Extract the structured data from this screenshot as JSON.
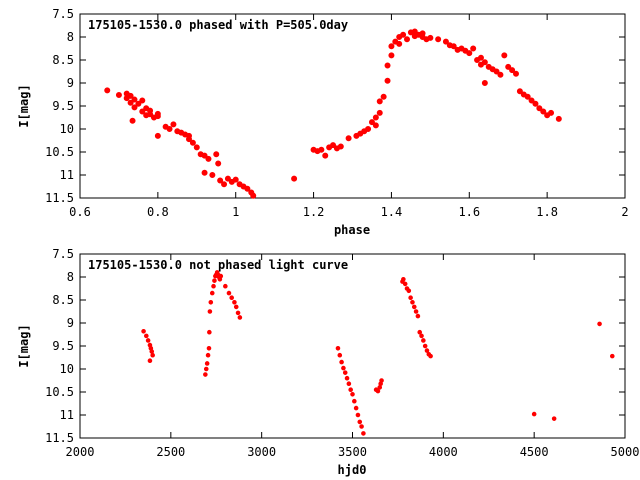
{
  "chart_data": [
    {
      "type": "scatter",
      "title": "175105-1530.0 phased with P=505.0day",
      "xlabel": "phase",
      "ylabel": "I[mag]",
      "xlim": [
        0.6,
        2.0
      ],
      "ylim": [
        11.5,
        7.5
      ],
      "y_inverted": true,
      "xticks": [
        0.6,
        0.8,
        1,
        1.2,
        1.4,
        1.6,
        1.8,
        2
      ],
      "xtick_labels": [
        "0.6",
        "0.8",
        "1",
        "1.2",
        "1.4",
        "1.6",
        "1.8",
        "2"
      ],
      "yticks": [
        7.5,
        8,
        8.5,
        9,
        9.5,
        10,
        10.5,
        11,
        11.5
      ],
      "ytick_labels": [
        "7.5",
        "8",
        "8.5",
        "9",
        "9.5",
        "10",
        "10.5",
        "11",
        "11.5"
      ],
      "grid": false,
      "marker_color": "#ff0000",
      "points": [
        [
          0.67,
          9.16
        ],
        [
          0.7,
          9.26
        ],
        [
          0.72,
          9.23
        ],
        [
          0.72,
          9.33
        ],
        [
          0.73,
          9.28
        ],
        [
          0.73,
          9.43
        ],
        [
          0.74,
          9.36
        ],
        [
          0.74,
          9.53
        ],
        [
          0.735,
          9.82
        ],
        [
          0.75,
          9.45
        ],
        [
          0.76,
          9.38
        ],
        [
          0.76,
          9.62
        ],
        [
          0.77,
          9.55
        ],
        [
          0.77,
          9.7
        ],
        [
          0.78,
          9.6
        ],
        [
          0.78,
          9.68
        ],
        [
          0.79,
          9.75
        ],
        [
          0.8,
          9.72
        ],
        [
          0.8,
          9.67
        ],
        [
          0.8,
          10.15
        ],
        [
          0.82,
          9.95
        ],
        [
          0.83,
          10.0
        ],
        [
          0.84,
          9.9
        ],
        [
          0.85,
          10.05
        ],
        [
          0.86,
          10.08
        ],
        [
          0.87,
          10.12
        ],
        [
          0.88,
          10.15
        ],
        [
          0.88,
          10.22
        ],
        [
          0.89,
          10.3
        ],
        [
          0.9,
          10.4
        ],
        [
          0.91,
          10.55
        ],
        [
          0.92,
          10.58
        ],
        [
          0.93,
          10.65
        ],
        [
          0.92,
          10.95
        ],
        [
          0.94,
          11.0
        ],
        [
          0.95,
          10.55
        ],
        [
          0.955,
          10.75
        ],
        [
          0.96,
          11.12
        ],
        [
          0.97,
          11.2
        ],
        [
          0.98,
          11.08
        ],
        [
          0.99,
          11.15
        ],
        [
          1.0,
          11.1
        ],
        [
          1.01,
          11.2
        ],
        [
          1.02,
          11.25
        ],
        [
          1.03,
          11.3
        ],
        [
          1.04,
          11.38
        ],
        [
          1.045,
          11.45
        ],
        [
          1.15,
          11.08
        ],
        [
          1.2,
          10.45
        ],
        [
          1.21,
          10.48
        ],
        [
          1.22,
          10.45
        ],
        [
          1.23,
          10.58
        ],
        [
          1.24,
          10.4
        ],
        [
          1.25,
          10.35
        ],
        [
          1.26,
          10.42
        ],
        [
          1.27,
          10.38
        ],
        [
          1.29,
          10.2
        ],
        [
          1.31,
          10.15
        ],
        [
          1.32,
          10.1
        ],
        [
          1.33,
          10.05
        ],
        [
          1.34,
          10.0
        ],
        [
          1.35,
          9.85
        ],
        [
          1.36,
          9.75
        ],
        [
          1.36,
          9.92
        ],
        [
          1.37,
          9.65
        ],
        [
          1.37,
          9.4
        ],
        [
          1.38,
          9.3
        ],
        [
          1.39,
          8.95
        ],
        [
          1.39,
          8.62
        ],
        [
          1.4,
          8.4
        ],
        [
          1.4,
          8.2
        ],
        [
          1.41,
          8.1
        ],
        [
          1.42,
          8.0
        ],
        [
          1.42,
          8.15
        ],
        [
          1.43,
          7.95
        ],
        [
          1.44,
          8.05
        ],
        [
          1.45,
          7.9
        ],
        [
          1.46,
          7.88
        ],
        [
          1.46,
          7.98
        ],
        [
          1.47,
          7.95
        ],
        [
          1.48,
          8.0
        ],
        [
          1.48,
          7.92
        ],
        [
          1.49,
          8.05
        ],
        [
          1.5,
          8.02
        ],
        [
          1.52,
          8.05
        ],
        [
          1.54,
          8.1
        ],
        [
          1.55,
          8.18
        ],
        [
          1.56,
          8.2
        ],
        [
          1.57,
          8.28
        ],
        [
          1.58,
          8.25
        ],
        [
          1.59,
          8.3
        ],
        [
          1.6,
          8.35
        ],
        [
          1.61,
          8.25
        ],
        [
          1.62,
          8.5
        ],
        [
          1.63,
          8.45
        ],
        [
          1.63,
          8.6
        ],
        [
          1.64,
          8.55
        ],
        [
          1.64,
          9.0
        ],
        [
          1.65,
          8.65
        ],
        [
          1.66,
          8.7
        ],
        [
          1.67,
          8.75
        ],
        [
          1.68,
          8.82
        ],
        [
          1.69,
          8.4
        ],
        [
          1.7,
          8.65
        ],
        [
          1.71,
          8.72
        ],
        [
          1.72,
          8.8
        ],
        [
          1.73,
          9.18
        ],
        [
          1.74,
          9.25
        ],
        [
          1.75,
          9.3
        ],
        [
          1.76,
          9.38
        ],
        [
          1.77,
          9.45
        ],
        [
          1.78,
          9.55
        ],
        [
          1.79,
          9.62
        ],
        [
          1.8,
          9.7
        ],
        [
          1.81,
          9.65
        ],
        [
          1.83,
          9.78
        ]
      ]
    },
    {
      "type": "scatter",
      "title": "175105-1530.0 not phased light curve",
      "xlabel": "hjd0",
      "ylabel": "I[mag]",
      "xlim": [
        2000,
        5000
      ],
      "ylim": [
        11.5,
        7.5
      ],
      "y_inverted": true,
      "xticks": [
        2000,
        2500,
        3000,
        3500,
        4000,
        4500,
        5000
      ],
      "xtick_labels": [
        "2000",
        "2500",
        "3000",
        "3500",
        "4000",
        "4500",
        "5000"
      ],
      "yticks": [
        7.5,
        8,
        8.5,
        9,
        9.5,
        10,
        10.5,
        11,
        11.5
      ],
      "ytick_labels": [
        "7.5",
        "8",
        "8.5",
        "9",
        "9.5",
        "10",
        "10.5",
        "11",
        "11.5"
      ],
      "grid": false,
      "marker_color": "#ff0000",
      "points": [
        [
          2350,
          9.18
        ],
        [
          2365,
          9.28
        ],
        [
          2375,
          9.38
        ],
        [
          2385,
          9.48
        ],
        [
          2390,
          9.55
        ],
        [
          2395,
          9.62
        ],
        [
          2400,
          9.7
        ],
        [
          2385,
          9.82
        ],
        [
          2690,
          10.12
        ],
        [
          2695,
          10.0
        ],
        [
          2700,
          9.88
        ],
        [
          2705,
          9.7
        ],
        [
          2710,
          9.55
        ],
        [
          2712,
          9.2
        ],
        [
          2715,
          8.75
        ],
        [
          2720,
          8.55
        ],
        [
          2728,
          8.35
        ],
        [
          2735,
          8.2
        ],
        [
          2740,
          8.08
        ],
        [
          2745,
          7.98
        ],
        [
          2750,
          7.95
        ],
        [
          2755,
          7.9
        ],
        [
          2760,
          7.95
        ],
        [
          2765,
          8.0
        ],
        [
          2770,
          8.05
        ],
        [
          2775,
          7.98
        ],
        [
          2800,
          8.2
        ],
        [
          2820,
          8.35
        ],
        [
          2835,
          8.45
        ],
        [
          2850,
          8.55
        ],
        [
          2860,
          8.65
        ],
        [
          2870,
          8.78
        ],
        [
          2880,
          8.88
        ],
        [
          3420,
          9.55
        ],
        [
          3430,
          9.7
        ],
        [
          3440,
          9.85
        ],
        [
          3450,
          9.98
        ],
        [
          3460,
          10.08
        ],
        [
          3470,
          10.2
        ],
        [
          3480,
          10.32
        ],
        [
          3490,
          10.45
        ],
        [
          3500,
          10.55
        ],
        [
          3510,
          10.7
        ],
        [
          3520,
          10.85
        ],
        [
          3530,
          11.0
        ],
        [
          3540,
          11.15
        ],
        [
          3550,
          11.25
        ],
        [
          3560,
          11.4
        ],
        [
          3630,
          10.45
        ],
        [
          3640,
          10.48
        ],
        [
          3650,
          10.4
        ],
        [
          3655,
          10.32
        ],
        [
          3660,
          10.25
        ],
        [
          3775,
          8.1
        ],
        [
          3780,
          8.05
        ],
        [
          3790,
          8.15
        ],
        [
          3800,
          8.25
        ],
        [
          3810,
          8.3
        ],
        [
          3820,
          8.45
        ],
        [
          3830,
          8.55
        ],
        [
          3840,
          8.65
        ],
        [
          3850,
          8.75
        ],
        [
          3860,
          8.85
        ],
        [
          3870,
          9.2
        ],
        [
          3880,
          9.28
        ],
        [
          3890,
          9.38
        ],
        [
          3900,
          9.5
        ],
        [
          3910,
          9.6
        ],
        [
          3920,
          9.68
        ],
        [
          3930,
          9.72
        ],
        [
          4500,
          10.98
        ],
        [
          4610,
          11.08
        ],
        [
          4860,
          9.02
        ],
        [
          4930,
          9.72
        ]
      ]
    }
  ]
}
